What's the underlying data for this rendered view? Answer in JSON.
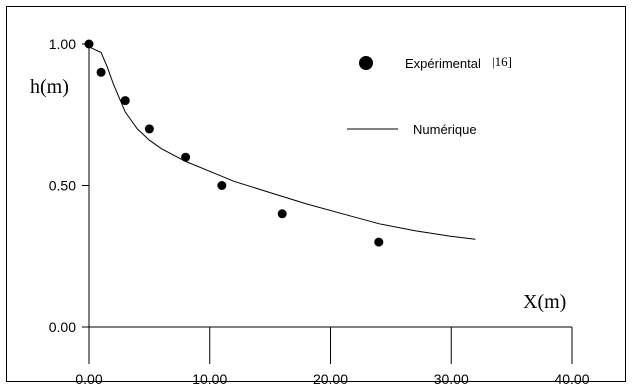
{
  "chart_data": {
    "type": "scatter",
    "title": "",
    "xlabel": "X(m)",
    "ylabel": "h(m)",
    "xlim": [
      0,
      40
    ],
    "ylim": [
      0,
      1
    ],
    "x_ticks": [
      "0.00",
      "10.00",
      "20.00",
      "30.00",
      "40.00"
    ],
    "y_ticks": [
      "0.00",
      "0.50",
      "1.00"
    ],
    "grid": false,
    "legend_position": "top-right",
    "series": [
      {
        "name": "Expérimental",
        "reference": "|16]",
        "kind": "points",
        "x": [
          0,
          1,
          3,
          5,
          8,
          11,
          16,
          24
        ],
        "y": [
          1.0,
          0.9,
          0.8,
          0.7,
          0.6,
          0.5,
          0.4,
          0.3
        ]
      },
      {
        "name": "Numérique",
        "kind": "line",
        "x": [
          0,
          1,
          1.5,
          2,
          3,
          4,
          5,
          6,
          8,
          10,
          12,
          15,
          18,
          21,
          24,
          27,
          30,
          32
        ],
        "y": [
          0.99,
          0.97,
          0.92,
          0.86,
          0.76,
          0.7,
          0.66,
          0.63,
          0.585,
          0.55,
          0.515,
          0.475,
          0.435,
          0.4,
          0.365,
          0.34,
          0.32,
          0.31
        ]
      }
    ]
  }
}
